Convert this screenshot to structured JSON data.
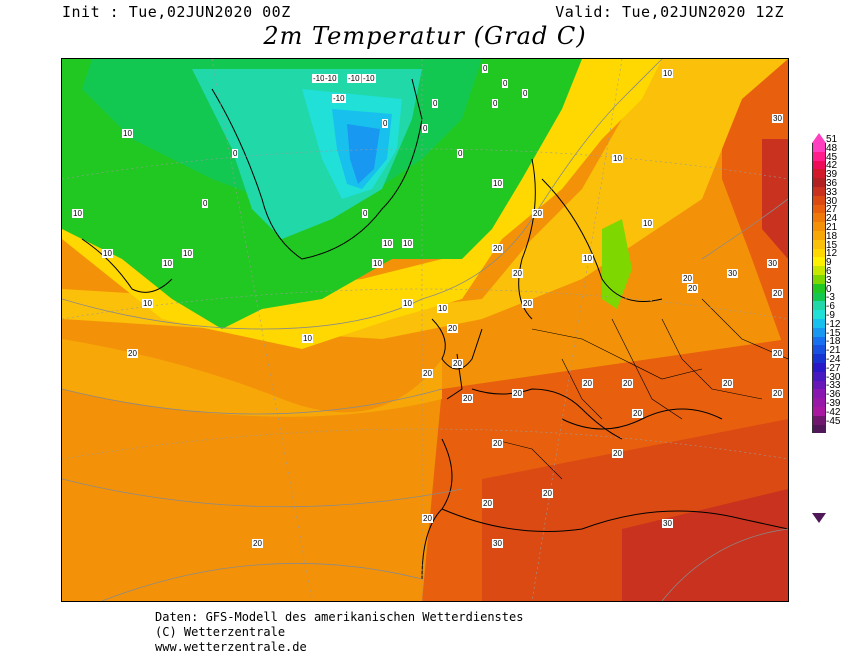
{
  "header": {
    "init": "Init : Tue,02JUN2020 00Z",
    "valid": "Valid: Tue,02JUN2020 12Z",
    "title": "2m Temperatur (Grad C)"
  },
  "legend": {
    "ticks": [
      "51",
      "48",
      "45",
      "42",
      "39",
      "36",
      "33",
      "30",
      "27",
      "24",
      "21",
      "18",
      "15",
      "12",
      "9",
      "6",
      "3",
      "0",
      "-3",
      "-6",
      "-9",
      "-12",
      "-15",
      "-18",
      "-21",
      "-24",
      "-27",
      "-30",
      "-33",
      "-36",
      "-39",
      "-42",
      "-45"
    ],
    "colors": [
      "#ff3fc0",
      "#ff1e8c",
      "#ee0c5a",
      "#d11a2a",
      "#b22222",
      "#c8321e",
      "#dc4a14",
      "#e8600e",
      "#ef7a0a",
      "#f39208",
      "#f7a808",
      "#fbc00a",
      "#fed800",
      "#fff200",
      "#c8e800",
      "#7ed800",
      "#22c822",
      "#12c850",
      "#20d8a8",
      "#20e0d8",
      "#18c0ee",
      "#1898f0",
      "#1870f0",
      "#1850e0",
      "#1834d0",
      "#2818c8",
      "#4818c0",
      "#6818b8",
      "#8818b0",
      "#9818a8",
      "#a818a0",
      "#70186e",
      "#501858"
    ]
  },
  "map": {
    "contour_labels": [
      "-10",
      "-10",
      "-10",
      "-10",
      "-10",
      "0",
      "0",
      "0",
      "0",
      "0",
      "0",
      "0",
      "0",
      "0",
      "0",
      "0",
      "10",
      "10",
      "10",
      "10",
      "10",
      "10",
      "10",
      "10",
      "10",
      "10",
      "10",
      "10",
      "10",
      "10",
      "10",
      "10",
      "10",
      "20",
      "20",
      "20",
      "20",
      "20",
      "20",
      "20",
      "20",
      "20",
      "20",
      "20",
      "20",
      "20",
      "20",
      "20",
      "20",
      "20",
      "20",
      "20",
      "20",
      "20",
      "20",
      "20",
      "20",
      "20",
      "30",
      "30",
      "30",
      "30",
      "30"
    ]
  },
  "footer": {
    "line1": "Daten: GFS-Modell des amerikanischen Wetterdienstes",
    "line2": "(C) Wetterzentrale",
    "line3": "www.wetterzentrale.de"
  }
}
